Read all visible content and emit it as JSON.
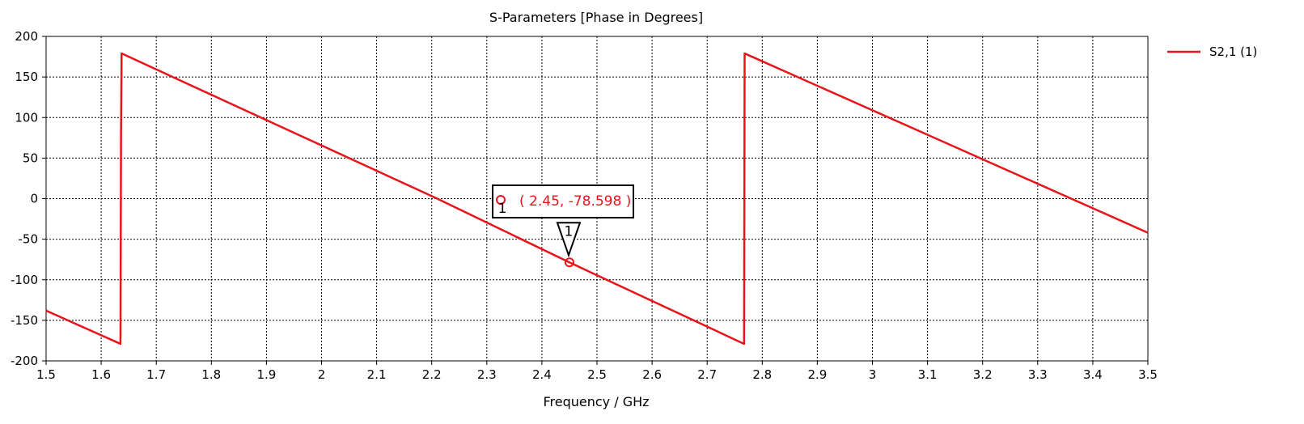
{
  "chart_data": {
    "type": "line",
    "title": "S-Parameters [Phase in Degrees]",
    "xlabel": "Frequency / GHz",
    "ylabel": "",
    "xlim": [
      1.5,
      3.5
    ],
    "ylim": [
      -200,
      200
    ],
    "xticks": [
      1.5,
      1.6,
      1.7,
      1.8,
      1.9,
      2,
      2.1,
      2.2,
      2.3,
      2.4,
      2.5,
      2.6,
      2.7,
      2.8,
      2.9,
      3,
      3.1,
      3.2,
      3.3,
      3.4,
      3.5
    ],
    "xtick_labels": [
      "1.5",
      "1.6",
      "1.7",
      "1.8",
      "1.9",
      "2",
      "2.1",
      "2.2",
      "2.3",
      "2.4",
      "2.5",
      "2.6",
      "2.7",
      "2.8",
      "2.9",
      "3",
      "3.1",
      "3.2",
      "3.3",
      "3.4",
      "3.5"
    ],
    "yticks": [
      -200,
      -150,
      -100,
      -50,
      0,
      50,
      100,
      150,
      200
    ],
    "ytick_labels": [
      "-200",
      "-150",
      "-100",
      "-50",
      "0",
      "50",
      "100",
      "150",
      "200"
    ],
    "grid": true,
    "grid_style": "dotted",
    "legend_placement": "right-top",
    "series": [
      {
        "name": "S2,1 (1)",
        "color": "#e8141c",
        "points": [
          [
            1.5,
            -138
          ],
          [
            1.635,
            -179
          ],
          [
            1.636,
            80
          ],
          [
            1.637,
            179
          ],
          [
            2.21,
            0
          ],
          [
            2.45,
            -78.598
          ],
          [
            2.767,
            -179
          ],
          [
            2.768,
            179
          ],
          [
            3.5,
            -42
          ]
        ]
      }
    ],
    "markers": [
      {
        "id": "1",
        "x": 2.45,
        "y": -78.598,
        "readout": "( 2.45, -78.598 )",
        "color": "#e8141c"
      }
    ]
  }
}
